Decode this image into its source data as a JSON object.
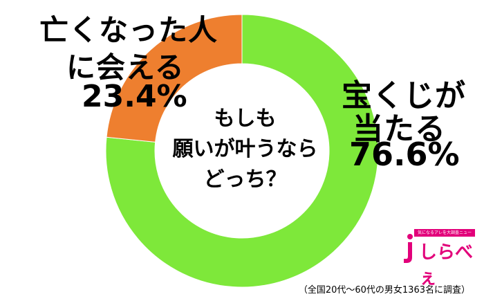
{
  "chart_data": {
    "type": "donut",
    "slices": [
      {
        "label_lines": [
          "宝くじが",
          "当たる"
        ],
        "value": 76.6,
        "value_label": "76.6%",
        "color": "#7ee83a"
      },
      {
        "label_lines": [
          "亡くなった人",
          "に会える"
        ],
        "value": 23.4,
        "value_label": "23.4%",
        "color": "#ee7f2f"
      }
    ],
    "center_text": [
      "もしも",
      "願いが叶うなら",
      "どっち？"
    ]
  },
  "footnote": "（全国20代〜60代の男女1363名に調査）",
  "logo": {
    "tagline": "気になるアレを大調査ニュース！",
    "text": "しらべぇ",
    "color": "#e2007a"
  }
}
